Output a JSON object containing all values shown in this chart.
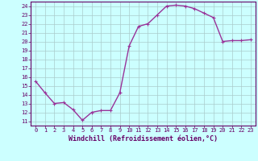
{
  "x": [
    0,
    1,
    2,
    3,
    4,
    5,
    6,
    7,
    8,
    9,
    10,
    11,
    12,
    13,
    14,
    15,
    16,
    17,
    18,
    19,
    20,
    21,
    22,
    23
  ],
  "y": [
    15.5,
    14.2,
    13.0,
    13.1,
    12.3,
    11.1,
    12.0,
    12.2,
    12.2,
    14.2,
    19.5,
    21.7,
    22.0,
    23.0,
    24.0,
    24.1,
    24.0,
    23.7,
    23.2,
    22.7,
    20.0,
    20.1,
    20.1,
    20.2
  ],
  "xlim": [
    -0.5,
    23.5
  ],
  "ylim": [
    10.5,
    24.5
  ],
  "yticks": [
    11,
    12,
    13,
    14,
    15,
    16,
    17,
    18,
    19,
    20,
    21,
    22,
    23,
    24
  ],
  "xticks": [
    0,
    1,
    2,
    3,
    4,
    5,
    6,
    7,
    8,
    9,
    10,
    11,
    12,
    13,
    14,
    15,
    16,
    17,
    18,
    19,
    20,
    21,
    22,
    23
  ],
  "xlabel": "Windchill (Refroidissement éolien,°C)",
  "line_color": "#993399",
  "marker": "+",
  "bg_color": "#ccffff",
  "grid_color": "#aacccc",
  "axis_color": "#660066",
  "label_color": "#660066",
  "tick_label_fontsize": 5.0,
  "xlabel_fontsize": 6.0,
  "linewidth": 1.0,
  "markersize": 3.5,
  "markerwidth": 0.8
}
